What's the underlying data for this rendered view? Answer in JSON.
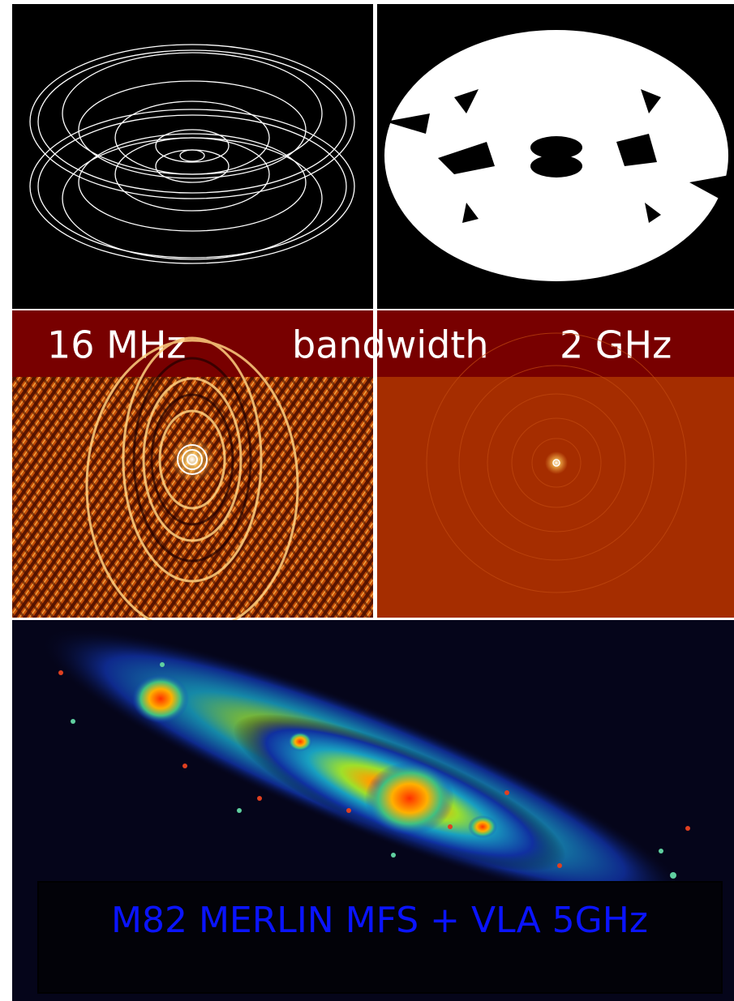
{
  "banner": {
    "left": "16 MHz",
    "center": "bandwidth",
    "right": "2 GHz"
  },
  "caption": "M82 MERLIN MFS + VLA 5GHz"
}
